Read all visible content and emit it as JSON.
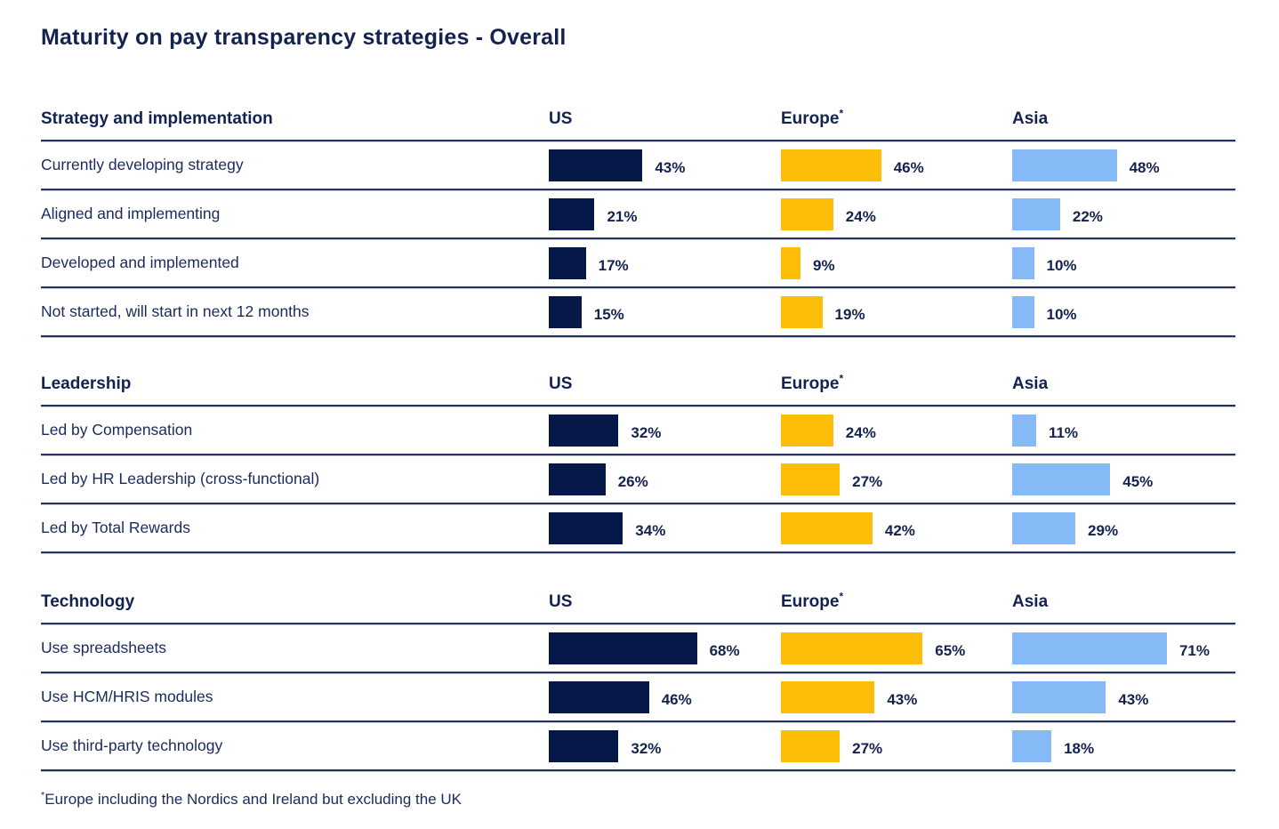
{
  "title": "Maturity on pay transparency strategies - Overall",
  "footnote": {
    "marker": "*",
    "text": "Europe including the Nordics and Ireland but excluding the UK"
  },
  "colors": {
    "navy_bar": "#061848",
    "gold_bar": "#fcbe09",
    "light_blue_bar": "#85baf6",
    "text_navy": "#13224f"
  },
  "value_unit": "%",
  "chart_data": [
    {
      "type": "bar",
      "title": "Strategy and implementation",
      "orientation": "horizontal",
      "xlim": [
        0,
        100
      ],
      "categories": [
        "Currently developing strategy",
        "Aligned and implementing",
        "Developed and implemented",
        "Not started, will start in next 12 months"
      ],
      "series": [
        {
          "name": "US",
          "color": "#061848",
          "values": [
            43,
            21,
            17,
            15
          ]
        },
        {
          "name": "Europe*",
          "color": "#fcbe09",
          "values": [
            46,
            24,
            9,
            19
          ]
        },
        {
          "name": "Asia",
          "color": "#85baf6",
          "values": [
            48,
            22,
            10,
            10
          ]
        }
      ]
    },
    {
      "type": "bar",
      "title": "Leadership",
      "orientation": "horizontal",
      "xlim": [
        0,
        100
      ],
      "categories": [
        "Led by Compensation",
        "Led by HR Leadership (cross-functional)",
        "Led by Total Rewards"
      ],
      "series": [
        {
          "name": "US",
          "color": "#061848",
          "values": [
            32,
            26,
            34
          ]
        },
        {
          "name": "Europe*",
          "color": "#fcbe09",
          "values": [
            24,
            27,
            42
          ]
        },
        {
          "name": "Asia",
          "color": "#85baf6",
          "values": [
            11,
            45,
            29
          ]
        }
      ]
    },
    {
      "type": "bar",
      "title": "Technology",
      "orientation": "horizontal",
      "xlim": [
        0,
        100
      ],
      "categories": [
        "Use spreadsheets",
        "Use HCM/HRIS modules",
        "Use third-party technology"
      ],
      "series": [
        {
          "name": "US",
          "color": "#061848",
          "values": [
            68,
            46,
            32
          ]
        },
        {
          "name": "Europe*",
          "color": "#fcbe09",
          "values": [
            65,
            43,
            27
          ]
        },
        {
          "name": "Asia",
          "color": "#85baf6",
          "values": [
            71,
            43,
            18
          ]
        }
      ]
    }
  ]
}
